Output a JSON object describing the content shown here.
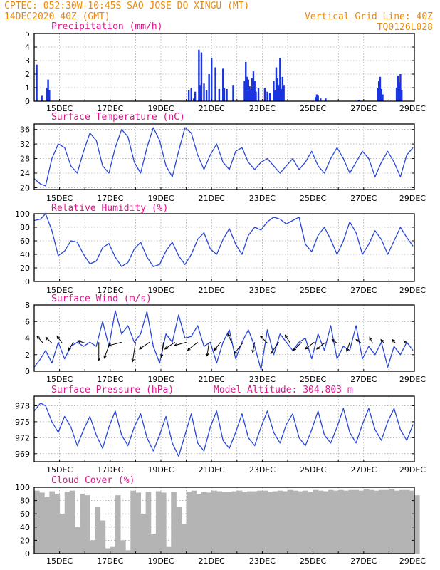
{
  "header": {
    "left_line1": "CPTEC:  052:30W-10:45S  SAO JOSE DO XINGU (MT)",
    "left_line2": "14DEC2020 40Z (GMT)",
    "right_line1": "Vertical Grid Line: 40Z",
    "right_line2": "TQ0126L028"
  },
  "colors": {
    "header": "#e8890c",
    "title": "#e0148c",
    "line": "#2846d8",
    "bar": "#1a34e0",
    "cloud": "#b4b4b4",
    "arrow": "#000000"
  },
  "chart_data": [
    {
      "id": "precip",
      "type": "bar",
      "title": "Precipitation (mm/h)",
      "ylim": [
        0,
        5
      ],
      "yticks": [
        0,
        1,
        2,
        3,
        4,
        5
      ],
      "xlim": [
        14.0,
        29.0
      ],
      "xticks": [
        "15DEC",
        "17DEC",
        "19DEC",
        "21DEC",
        "23DEC",
        "25DEC",
        "27DEC",
        "29DEC"
      ],
      "x": [
        14.1,
        14.3,
        14.5,
        14.55,
        14.6,
        20.1,
        20.2,
        20.3,
        20.35,
        20.5,
        20.55,
        20.6,
        20.7,
        20.8,
        20.9,
        21.0,
        21.15,
        21.3,
        21.45,
        21.5,
        21.6,
        21.85,
        22.3,
        22.35,
        22.4,
        22.45,
        22.5,
        22.55,
        22.6,
        22.65,
        22.7,
        22.75,
        22.85,
        23.1,
        23.2,
        23.3,
        23.45,
        23.5,
        23.55,
        23.6,
        23.65,
        23.7,
        23.75,
        23.8,
        23.85,
        25.1,
        25.15,
        25.2,
        25.3,
        25.5,
        26.8,
        27.55,
        27.6,
        27.65,
        27.7,
        27.75,
        28.3,
        28.35,
        28.4,
        28.45,
        28.5
      ],
      "values": [
        2.7,
        0.4,
        1.0,
        1.6,
        0.8,
        0.8,
        1.0,
        0.2,
        0.7,
        3.8,
        1.2,
        3.6,
        1.3,
        0.8,
        2.0,
        3.2,
        2.5,
        0.9,
        2.4,
        1.0,
        0.9,
        1.2,
        1.5,
        2.9,
        1.8,
        1.6,
        1.1,
        0.9,
        1.7,
        2.2,
        1.5,
        0.7,
        1.0,
        1.0,
        0.7,
        0.6,
        1.5,
        0.8,
        2.5,
        1.7,
        1.2,
        3.2,
        0.9,
        1.8,
        1.2,
        0.3,
        0.5,
        0.4,
        0.2,
        0.2,
        0.1,
        1.0,
        1.5,
        1.8,
        0.9,
        0.5,
        1.0,
        1.9,
        1.4,
        2.0,
        0.8
      ]
    },
    {
      "id": "temp",
      "type": "line",
      "title": "Surface Temperature (nC)",
      "ylim": [
        19.5,
        37.5
      ],
      "yticks": [
        20,
        24,
        28,
        32,
        36
      ],
      "xlim": [
        14.0,
        29.0
      ],
      "xticks": [
        "15DEC",
        "17DEC",
        "19DEC",
        "21DEC",
        "23DEC",
        "25DEC",
        "27DEC",
        "29DEC"
      ],
      "x": [
        14.0,
        14.25,
        14.45,
        14.7,
        14.95,
        15.2,
        15.45,
        15.7,
        15.95,
        16.2,
        16.45,
        16.7,
        16.95,
        17.2,
        17.45,
        17.7,
        17.95,
        18.2,
        18.45,
        18.7,
        18.95,
        19.2,
        19.45,
        19.7,
        19.95,
        20.2,
        20.45,
        20.7,
        20.95,
        21.2,
        21.45,
        21.7,
        21.95,
        22.2,
        22.45,
        22.7,
        22.95,
        23.2,
        23.45,
        23.7,
        23.95,
        24.2,
        24.45,
        24.7,
        24.95,
        25.2,
        25.45,
        25.7,
        25.95,
        26.2,
        26.45,
        26.7,
        26.95,
        27.2,
        27.45,
        27.7,
        27.95,
        28.2,
        28.45,
        28.7,
        28.95
      ],
      "y": [
        22.5,
        21,
        20.5,
        28,
        32,
        31,
        26,
        24,
        30,
        35,
        33,
        26,
        24,
        31,
        36,
        34,
        27,
        24,
        31,
        36.5,
        33,
        26,
        23,
        30,
        36.5,
        35,
        29,
        25,
        29,
        32,
        27,
        25,
        30,
        31,
        27,
        25,
        27,
        28,
        26,
        24,
        26,
        28,
        25,
        27,
        30,
        26,
        24,
        28,
        31,
        28,
        24,
        27,
        30,
        28,
        23,
        27,
        30,
        27,
        23,
        29,
        31
      ]
    },
    {
      "id": "rh",
      "type": "line",
      "title": "Relative Humidity (%)",
      "ylim": [
        0,
        100
      ],
      "yticks": [
        0,
        20,
        40,
        60,
        80,
        100
      ],
      "xlim": [
        14.0,
        29.0
      ],
      "xticks": [
        "15DEC",
        "17DEC",
        "19DEC",
        "21DEC",
        "23DEC",
        "25DEC",
        "27DEC",
        "29DEC"
      ],
      "x": [
        14.0,
        14.25,
        14.45,
        14.7,
        14.95,
        15.2,
        15.45,
        15.7,
        15.95,
        16.2,
        16.45,
        16.7,
        16.95,
        17.2,
        17.45,
        17.7,
        17.95,
        18.2,
        18.45,
        18.7,
        18.95,
        19.2,
        19.45,
        19.7,
        19.95,
        20.2,
        20.45,
        20.7,
        20.95,
        21.2,
        21.45,
        21.7,
        21.95,
        22.2,
        22.45,
        22.7,
        22.95,
        23.2,
        23.45,
        23.7,
        23.95,
        24.2,
        24.45,
        24.7,
        24.95,
        25.2,
        25.45,
        25.7,
        25.95,
        26.2,
        26.45,
        26.7,
        26.95,
        27.2,
        27.45,
        27.7,
        27.95,
        28.2,
        28.45,
        28.7,
        28.95
      ],
      "y": [
        90,
        92,
        100,
        75,
        38,
        45,
        60,
        58,
        40,
        26,
        30,
        50,
        56,
        36,
        22,
        28,
        48,
        58,
        36,
        22,
        25,
        45,
        58,
        38,
        25,
        40,
        62,
        72,
        48,
        40,
        62,
        78,
        55,
        40,
        68,
        80,
        76,
        88,
        95,
        92,
        85,
        90,
        95,
        55,
        44,
        68,
        80,
        62,
        40,
        60,
        88,
        72,
        40,
        55,
        75,
        62,
        40,
        60,
        80,
        65,
        52
      ]
    },
    {
      "id": "wind",
      "type": "line",
      "title": "Surface Wind (m/s)",
      "ylim": [
        0,
        8
      ],
      "yticks": [
        0,
        2,
        4,
        6,
        8
      ],
      "xlim": [
        14.0,
        29.0
      ],
      "xticks": [
        "15DEC",
        "17DEC",
        "19DEC",
        "21DEC",
        "23DEC",
        "25DEC",
        "27DEC",
        "29DEC"
      ],
      "x": [
        14.0,
        14.25,
        14.45,
        14.7,
        14.95,
        15.2,
        15.45,
        15.7,
        15.95,
        16.2,
        16.45,
        16.7,
        16.95,
        17.2,
        17.45,
        17.7,
        17.95,
        18.2,
        18.45,
        18.7,
        18.95,
        19.2,
        19.45,
        19.7,
        19.95,
        20.2,
        20.45,
        20.7,
        20.95,
        21.2,
        21.45,
        21.7,
        21.95,
        22.2,
        22.45,
        22.7,
        22.95,
        23.2,
        23.45,
        23.7,
        23.95,
        24.2,
        24.45,
        24.7,
        24.95,
        25.2,
        25.45,
        25.7,
        25.95,
        26.2,
        26.45,
        26.7,
        26.95,
        27.2,
        27.45,
        27.7,
        27.95,
        28.2,
        28.45,
        28.7,
        28.95
      ],
      "y": [
        0.5,
        1.5,
        2.5,
        1.0,
        3.5,
        1.5,
        3.0,
        3.5,
        3.0,
        3.5,
        3.0,
        6.0,
        3.0,
        7.3,
        4.5,
        5.5,
        3.5,
        4.5,
        7.2,
        3.0,
        1.0,
        4.5,
        3.5,
        6.8,
        4.0,
        4.2,
        5.5,
        3.0,
        3.5,
        1.0,
        3.5,
        5.0,
        1.5,
        3.5,
        5.0,
        3.0,
        0.2,
        5.0,
        2.0,
        4.5,
        3.5,
        2.5,
        3.5,
        4.0,
        1.5,
        4.5,
        2.5,
        5.5,
        1.5,
        3.0,
        2.5,
        5.5,
        1.5,
        3.0,
        2.0,
        3.5,
        0.5,
        3.0,
        2.0,
        3.5,
        2.5
      ],
      "arrows": [
        {
          "x": 14.35,
          "dx": -0.6,
          "dy": 0.6
        },
        {
          "x": 14.7,
          "dx": -0.6,
          "dy": 0.5
        },
        {
          "x": 15.1,
          "dx": -0.5,
          "dy": 0.6
        },
        {
          "x": 15.55,
          "dx": -0.5,
          "dy": -0.7
        },
        {
          "x": 16.0,
          "dx": -0.7,
          "dy": 0.2
        },
        {
          "x": 16.55,
          "dx": 0.0,
          "dy": -1.6
        },
        {
          "x": 17.0,
          "dx": -0.6,
          "dy": -1.4
        },
        {
          "x": 17.45,
          "dx": -1.3,
          "dy": -0.3
        },
        {
          "x": 18.0,
          "dx": -0.3,
          "dy": -1.7
        },
        {
          "x": 18.55,
          "dx": -1.0,
          "dy": -0.6
        },
        {
          "x": 19.1,
          "dx": -0.2,
          "dy": -1.3
        },
        {
          "x": 19.55,
          "dx": -1.0,
          "dy": -0.6
        },
        {
          "x": 20.0,
          "dx": -1.2,
          "dy": -0.3
        },
        {
          "x": 20.45,
          "dx": -1.0,
          "dy": -0.7
        },
        {
          "x": 20.9,
          "dx": -0.2,
          "dy": -1.2
        },
        {
          "x": 21.35,
          "dx": -0.6,
          "dy": -0.7
        },
        {
          "x": 21.8,
          "dx": -0.4,
          "dy": 0.8
        },
        {
          "x": 22.25,
          "dx": -0.9,
          "dy": -1.0
        },
        {
          "x": 22.7,
          "dx": -0.2,
          "dy": -0.9
        },
        {
          "x": 23.2,
          "dx": -0.7,
          "dy": 0.6
        },
        {
          "x": 23.65,
          "dx": -0.8,
          "dy": -1.0
        },
        {
          "x": 24.1,
          "dx": -0.5,
          "dy": 0.7
        },
        {
          "x": 24.55,
          "dx": -0.8,
          "dy": -0.7
        },
        {
          "x": 25.05,
          "dx": -0.9,
          "dy": -0.6
        },
        {
          "x": 25.5,
          "dx": -0.9,
          "dy": -0.6
        },
        {
          "x": 25.95,
          "dx": -0.5,
          "dy": 0.3
        },
        {
          "x": 26.45,
          "dx": -0.3,
          "dy": -0.8
        },
        {
          "x": 26.9,
          "dx": -0.5,
          "dy": 0.3
        },
        {
          "x": 27.35,
          "dx": -0.3,
          "dy": 0.5
        },
        {
          "x": 27.8,
          "dx": -0.3,
          "dy": 0.3
        },
        {
          "x": 28.25,
          "dx": -0.3,
          "dy": 0.3
        },
        {
          "x": 28.7,
          "dx": -0.3,
          "dy": 0.2
        }
      ]
    },
    {
      "id": "pres",
      "type": "line",
      "title": "Surface Pressure (hPa)",
      "annotation": "Model Altitude: 304.803 m",
      "ylim": [
        967.5,
        979.8
      ],
      "yticks": [
        969,
        972,
        975,
        978
      ],
      "xlim": [
        14.0,
        29.0
      ],
      "xticks": [
        "15DEC",
        "17DEC",
        "19DEC",
        "21DEC",
        "23DEC",
        "25DEC",
        "27DEC",
        "29DEC"
      ],
      "x": [
        14.0,
        14.25,
        14.45,
        14.7,
        14.95,
        15.2,
        15.45,
        15.7,
        15.95,
        16.2,
        16.45,
        16.7,
        16.95,
        17.2,
        17.45,
        17.7,
        17.95,
        18.2,
        18.45,
        18.7,
        18.95,
        19.2,
        19.45,
        19.7,
        19.95,
        20.2,
        20.45,
        20.7,
        20.95,
        21.2,
        21.45,
        21.7,
        21.95,
        22.2,
        22.45,
        22.7,
        22.95,
        23.2,
        23.45,
        23.7,
        23.95,
        24.2,
        24.45,
        24.7,
        24.95,
        25.2,
        25.45,
        25.7,
        25.95,
        26.2,
        26.45,
        26.7,
        26.95,
        27.2,
        27.45,
        27.7,
        27.95,
        28.2,
        28.45,
        28.7,
        28.95
      ],
      "y": [
        977,
        978.5,
        978,
        975,
        973,
        976,
        974,
        970.5,
        973.5,
        976,
        972.5,
        970,
        974,
        977,
        972.5,
        970.5,
        974,
        976.5,
        972,
        969.5,
        972.5,
        976,
        971,
        968.5,
        972.5,
        976.5,
        971,
        969.5,
        974,
        977,
        971.5,
        970,
        973,
        976.5,
        972,
        970.5,
        974,
        977,
        973,
        971,
        974.5,
        976.5,
        972,
        970.5,
        973.5,
        977,
        972.5,
        971,
        974,
        977.5,
        973,
        971,
        974.5,
        977.5,
        973.5,
        971.5,
        975,
        977.5,
        973.5,
        971.5,
        974.5
      ]
    },
    {
      "id": "cloud",
      "type": "area",
      "title": "Cloud Cover (%)",
      "ylim": [
        0,
        100
      ],
      "yticks": [
        0,
        20,
        40,
        60,
        80,
        100
      ],
      "xlim": [
        14.0,
        29.0
      ],
      "xticks": [
        "15DEC",
        "17DEC",
        "19DEC",
        "21DEC",
        "23DEC",
        "25DEC",
        "27DEC",
        "29DEC"
      ],
      "x": [
        14.0,
        14.2,
        14.4,
        14.6,
        14.8,
        15.0,
        15.2,
        15.4,
        15.6,
        15.8,
        16.0,
        16.2,
        16.4,
        16.6,
        16.8,
        17.0,
        17.2,
        17.4,
        17.6,
        17.8,
        18.0,
        18.2,
        18.4,
        18.6,
        18.8,
        19.0,
        19.2,
        19.4,
        19.6,
        19.8,
        20.0,
        20.2,
        20.4,
        20.6,
        20.8,
        21.0,
        21.2,
        21.4,
        21.6,
        21.8,
        22.0,
        22.2,
        22.4,
        22.6,
        22.8,
        23.0,
        23.2,
        23.4,
        23.6,
        23.8,
        24.0,
        24.2,
        24.4,
        24.6,
        24.8,
        25.0,
        25.2,
        25.4,
        25.6,
        25.8,
        26.0,
        26.2,
        26.4,
        26.6,
        26.8,
        27.0,
        27.2,
        27.4,
        27.6,
        27.8,
        28.0,
        28.2,
        28.4,
        28.6,
        28.8,
        29.0
      ],
      "y": [
        95,
        92,
        85,
        94,
        90,
        60,
        93,
        95,
        40,
        90,
        88,
        20,
        70,
        50,
        8,
        10,
        88,
        20,
        5,
        95,
        92,
        60,
        93,
        30,
        94,
        92,
        10,
        93,
        70,
        45,
        93,
        95,
        90,
        93,
        92,
        95,
        94,
        93,
        93,
        94,
        95,
        93,
        94,
        94,
        95,
        95,
        93,
        94,
        95,
        94,
        96,
        95,
        94,
        95,
        93,
        96,
        95,
        94,
        96,
        95,
        96,
        95,
        96,
        96,
        95,
        97,
        96,
        95,
        96,
        96,
        97,
        95,
        96,
        96,
        95,
        88
      ]
    }
  ]
}
